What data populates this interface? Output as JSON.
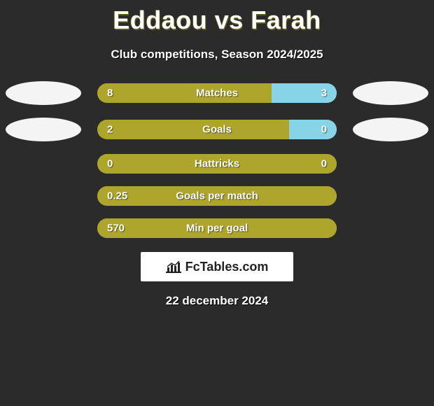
{
  "title": "Eddaou vs Farah",
  "subtitle": "Club competitions, Season 2024/2025",
  "date": "22 december 2024",
  "branding": "FcTables.com",
  "colors": {
    "player_left_bar": "#ada52c",
    "player_right_bar": "#87d4e8",
    "player_left_oval": "#f4f4f4",
    "player_right_oval": "#f4f4f4",
    "bar_base": "#ada52c"
  },
  "stats": [
    {
      "label": "Matches",
      "left_display": "8",
      "right_display": "3",
      "left_pct": 72.7,
      "right_pct": 27.3,
      "show_ovals": true
    },
    {
      "label": "Goals",
      "left_display": "2",
      "right_display": "0",
      "left_pct": 80,
      "right_pct": 20,
      "show_ovals": true
    },
    {
      "label": "Hattricks",
      "left_display": "0",
      "right_display": "0",
      "left_pct": 100,
      "right_pct": 0,
      "show_ovals": false
    },
    {
      "label": "Goals per match",
      "left_display": "0.25",
      "right_display": "",
      "left_pct": 100,
      "right_pct": 0,
      "show_ovals": false
    },
    {
      "label": "Min per goal",
      "left_display": "570",
      "right_display": "",
      "left_pct": 100,
      "right_pct": 0,
      "show_ovals": false
    }
  ]
}
